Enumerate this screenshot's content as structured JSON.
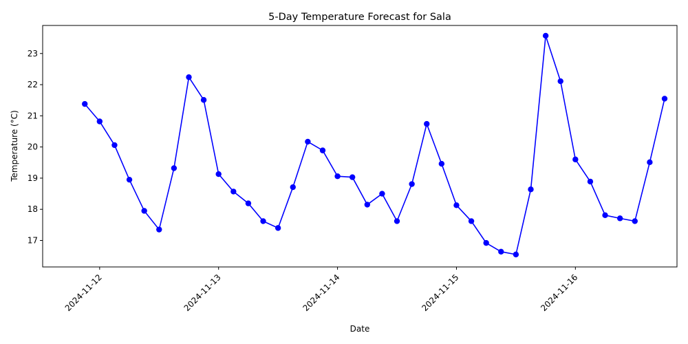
{
  "chart_data": {
    "type": "line",
    "title": "5-Day Temperature Forecast for Sala",
    "xlabel": "Date",
    "ylabel": "Temperature (°C)",
    "grid": false,
    "legend": "none",
    "line_color": "#0000ff",
    "marker_color": "#0000ff",
    "x_range": [
      "2024-11-11 12:30",
      "2024-11-16 20:30"
    ],
    "ylim": [
      16.15,
      23.9
    ],
    "x_ticks": [
      {
        "value": "2024-11-12 00:00",
        "label": "2024-11-12"
      },
      {
        "value": "2024-11-13 00:00",
        "label": "2024-11-13"
      },
      {
        "value": "2024-11-14 00:00",
        "label": "2024-11-14"
      },
      {
        "value": "2024-11-15 00:00",
        "label": "2024-11-15"
      },
      {
        "value": "2024-11-16 00:00",
        "label": "2024-11-16"
      }
    ],
    "y_ticks": [
      17,
      18,
      19,
      20,
      21,
      22,
      23
    ],
    "series": [
      {
        "x": [
          "2024-11-11 21:00",
          "2024-11-12 00:00",
          "2024-11-12 03:00",
          "2024-11-12 06:00",
          "2024-11-12 09:00",
          "2024-11-12 12:00",
          "2024-11-12 15:00",
          "2024-11-12 18:00",
          "2024-11-12 21:00",
          "2024-11-13 00:00",
          "2024-11-13 03:00",
          "2024-11-13 06:00",
          "2024-11-13 09:00",
          "2024-11-13 12:00",
          "2024-11-13 15:00",
          "2024-11-13 18:00",
          "2024-11-13 21:00",
          "2024-11-14 00:00",
          "2024-11-14 03:00",
          "2024-11-14 06:00",
          "2024-11-14 09:00",
          "2024-11-14 12:00",
          "2024-11-14 15:00",
          "2024-11-14 18:00",
          "2024-11-14 21:00",
          "2024-11-15 00:00",
          "2024-11-15 03:00",
          "2024-11-15 06:00",
          "2024-11-15 09:00",
          "2024-11-15 12:00",
          "2024-11-15 15:00",
          "2024-11-15 18:00",
          "2024-11-15 21:00",
          "2024-11-16 00:00",
          "2024-11-16 03:00",
          "2024-11-16 06:00",
          "2024-11-16 09:00",
          "2024-11-16 12:00",
          "2024-11-16 15:00",
          "2024-11-16 18:00"
        ],
        "values": [
          21.38,
          20.82,
          20.06,
          18.95,
          17.95,
          17.35,
          19.32,
          22.24,
          21.51,
          19.13,
          18.57,
          18.19,
          17.62,
          17.4,
          18.71,
          20.17,
          19.89,
          19.06,
          19.03,
          18.15,
          18.5,
          17.62,
          18.81,
          20.74,
          19.46,
          18.13,
          17.62,
          16.92,
          16.64,
          16.55,
          18.64,
          23.57,
          22.11,
          19.6,
          18.89,
          17.81,
          17.71,
          17.62,
          19.51,
          21.55
        ]
      }
    ]
  }
}
